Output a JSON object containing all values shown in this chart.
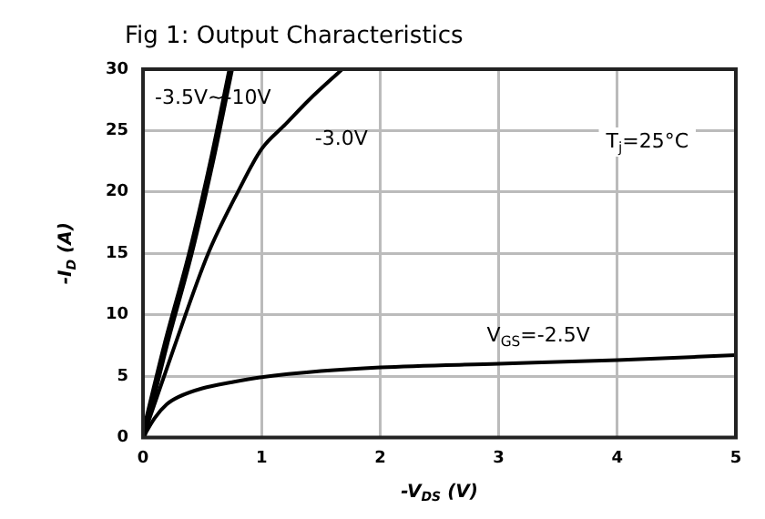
{
  "chart_data": {
    "type": "line",
    "title": "Fig 1: Output Characteristics",
    "xlabel": "-V$_{DS}$ (V)",
    "ylabel": "-I$_{D}$ (A)",
    "xlim": [
      0,
      5
    ],
    "xticks": [
      0,
      1,
      2,
      3,
      4,
      5
    ],
    "ylim": [
      0,
      30
    ],
    "yticks": [
      0,
      5,
      10,
      15,
      20,
      25,
      30
    ],
    "grid": true,
    "legend": false,
    "marker": "none",
    "line_style": "solid",
    "series": [
      {
        "name": "V$_{GS}$=-2.5V",
        "color": "#000000",
        "x": [
          0,
          0.1,
          0.2,
          0.3,
          0.5,
          0.75,
          1,
          1.5,
          2,
          3,
          4,
          5
        ],
        "values": [
          0,
          1.6,
          2.7,
          3.3,
          4.0,
          4.5,
          4.9,
          5.4,
          5.7,
          6.0,
          6.3,
          6.7
        ]
      },
      {
        "name": "-3.0V",
        "color": "#000000",
        "x": [
          0,
          0.25,
          0.55,
          0.8,
          1,
          1.2,
          1.4,
          1.68
        ],
        "values": [
          0,
          7,
          15,
          20,
          23.5,
          25.5,
          27.5,
          30
        ]
      },
      {
        "name": "-3.5V~-10V",
        "color": "#000000",
        "x": [
          0,
          0.19,
          0.4,
          0.58,
          0.74
        ],
        "values": [
          0,
          7.5,
          15,
          22.5,
          30
        ]
      }
    ],
    "annotations": [
      "T$_{j}$=25°C"
    ]
  }
}
